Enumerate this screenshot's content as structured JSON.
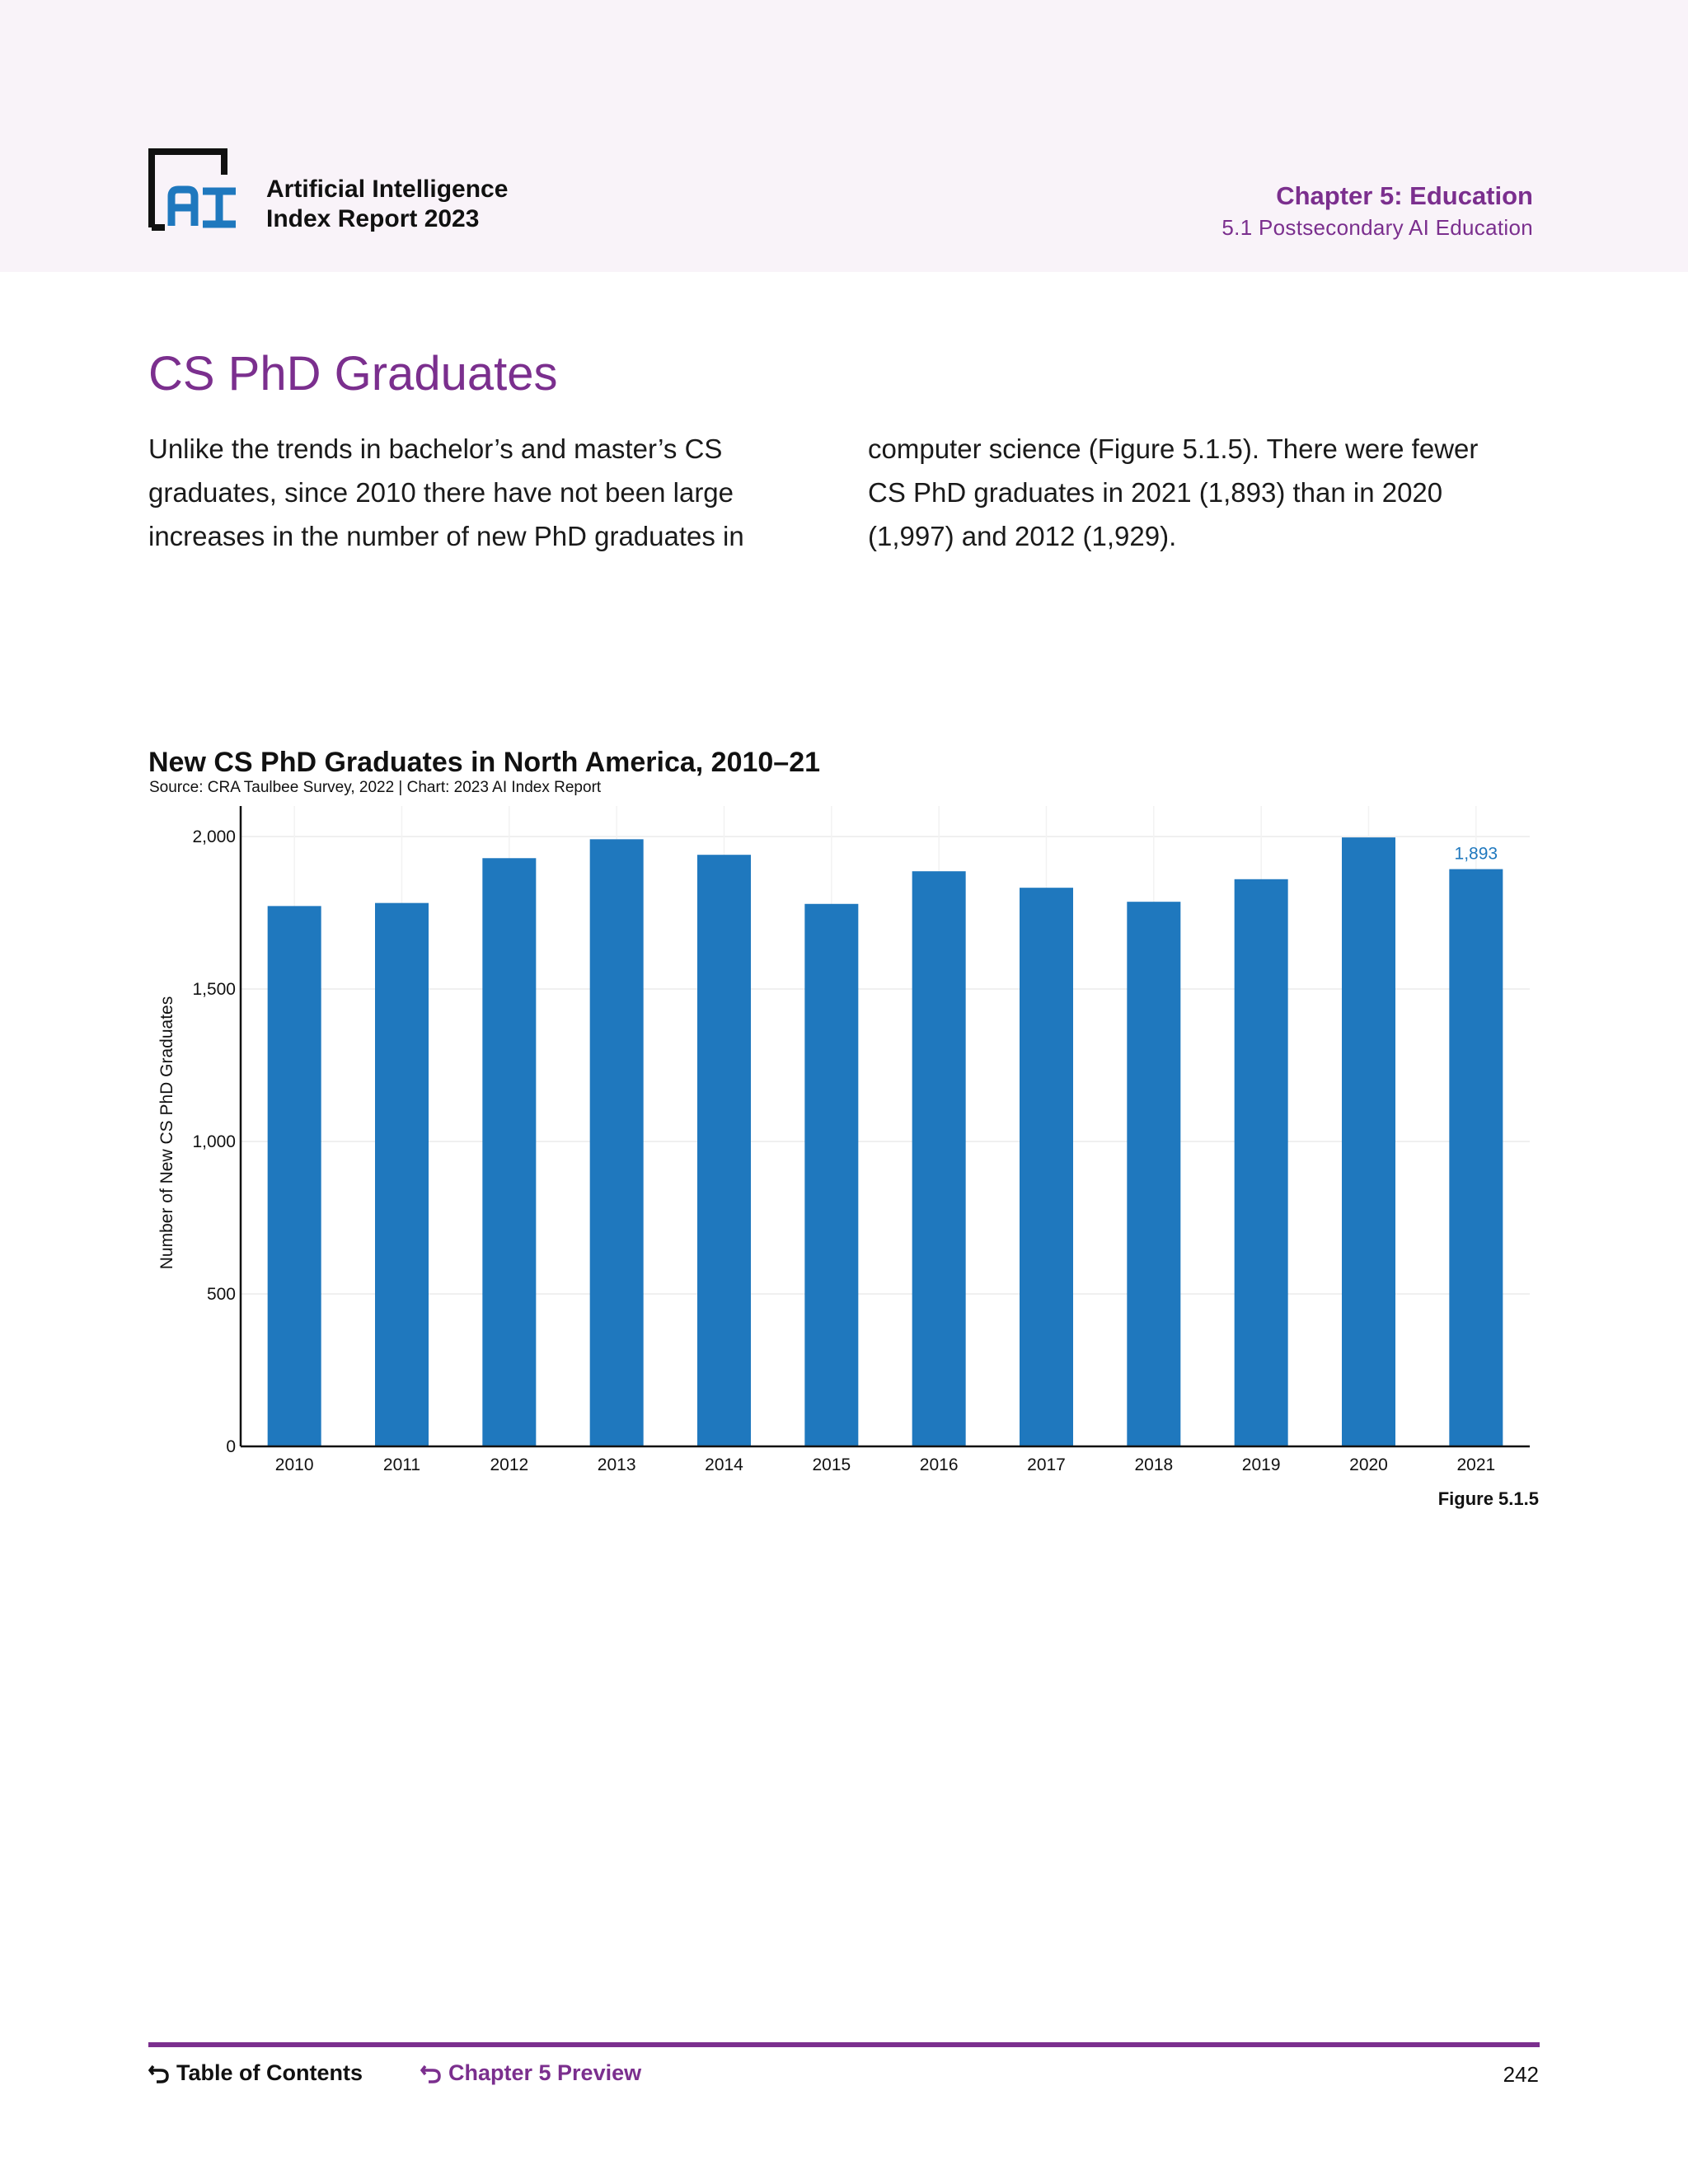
{
  "header": {
    "report_line1": "Artificial Intelligence",
    "report_line2": "Index Report 2023",
    "chapter": "Chapter 5: Education",
    "section": "5.1 Postsecondary AI Education"
  },
  "section_title": "CS PhD Graduates",
  "body": {
    "left": "Unlike the trends in bachelor’s and master’s CS graduates, since 2010 there have not been large increases in the number of new PhD graduates in",
    "right": "computer science (Figure 5.1.5). There were fewer CS PhD graduates in 2021 (1,893) than in 2020 (1,997) and 2012 (1,929)."
  },
  "chart_data": {
    "type": "bar",
    "title": "New CS PhD Graduates in North America, 2010–21",
    "source": "Source: CRA Taulbee Survey, 2022 | Chart: 2023 AI Index Report",
    "xlabel": "",
    "ylabel": "Number of New CS PhD Graduates",
    "categories": [
      "2010",
      "2011",
      "2012",
      "2013",
      "2014",
      "2015",
      "2016",
      "2017",
      "2018",
      "2019",
      "2020",
      "2021"
    ],
    "values": [
      1772,
      1782,
      1929,
      1991,
      1940,
      1779,
      1886,
      1832,
      1786,
      1860,
      1997,
      1893
    ],
    "ylim": [
      0,
      2100
    ],
    "yticks": [
      0,
      500,
      1000,
      1500,
      2000
    ],
    "ytick_labels": [
      "0",
      "500",
      "1,000",
      "1,500",
      "2,000"
    ],
    "data_labels": [
      {
        "category": "2021",
        "text": "1,893"
      }
    ],
    "bar_color": "#1f78be",
    "grid": true,
    "figure_label": "Figure 5.1.5"
  },
  "footer": {
    "toc": "Table of Contents",
    "preview": "Chapter 5 Preview",
    "page": "242"
  },
  "colors": {
    "accent": "#7b2f8e",
    "header_bg": "#f9f3f9",
    "logo_blue": "#1f78be"
  }
}
